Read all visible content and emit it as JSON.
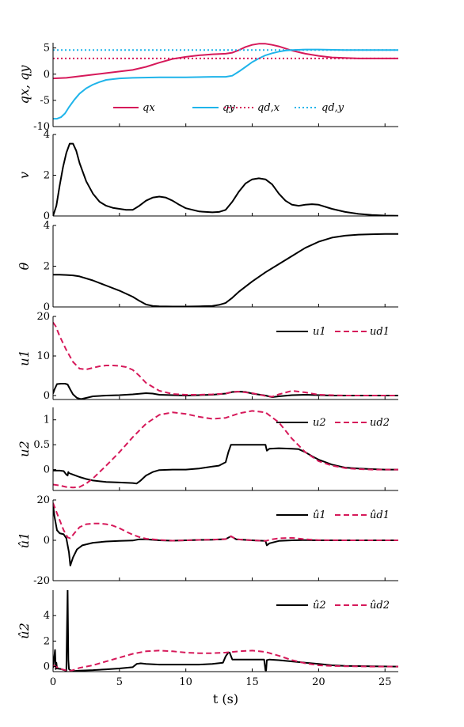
{
  "colors": {
    "magenta": "#d6195a",
    "cyan": "#1fb4ea",
    "black": "#000000"
  },
  "xaxis": {
    "label": "t (s)",
    "ticks": [
      0,
      5,
      10,
      15,
      20,
      25
    ],
    "xlim": [
      0,
      26
    ]
  },
  "chart_data": [
    {
      "type": "line",
      "ylabel": "qx, qy",
      "ylim": [
        -10,
        6
      ],
      "yticks": [
        -10,
        -5,
        0,
        5
      ],
      "legend_position": "bottom",
      "series": [
        {
          "name": "qx",
          "color": "#d6195a",
          "style": "solid",
          "x": [
            0,
            1,
            2,
            3,
            4,
            5,
            6,
            7,
            8,
            9,
            10,
            11,
            12,
            13,
            13.5,
            14,
            14.5,
            15,
            15.5,
            16,
            16.5,
            17,
            17.5,
            18,
            19,
            20,
            21,
            22,
            23,
            24,
            25,
            26
          ],
          "y": [
            -0.8,
            -0.7,
            -0.4,
            -0.1,
            0.2,
            0.5,
            0.8,
            1.4,
            2.2,
            2.9,
            3.3,
            3.6,
            3.8,
            3.9,
            4.1,
            4.6,
            5.2,
            5.6,
            5.8,
            5.8,
            5.6,
            5.3,
            4.9,
            4.5,
            3.9,
            3.5,
            3.2,
            3.1,
            3.0,
            3.0,
            3.0,
            3.0
          ]
        },
        {
          "name": "qy",
          "color": "#1fb4ea",
          "style": "solid",
          "x": [
            0,
            0.3,
            0.6,
            0.9,
            1.2,
            1.6,
            2,
            2.5,
            3,
            3.5,
            4,
            5,
            6,
            8,
            10,
            12,
            13,
            13.5,
            14,
            14.5,
            15,
            15.5,
            16,
            16.5,
            17,
            17.5,
            18,
            19,
            20,
            22,
            24,
            26
          ],
          "y": [
            -8.5,
            -8.5,
            -8.2,
            -7.5,
            -6.3,
            -4.9,
            -3.7,
            -2.7,
            -2.0,
            -1.5,
            -1.1,
            -0.8,
            -0.7,
            -0.6,
            -0.6,
            -0.5,
            -0.5,
            -0.3,
            0.5,
            1.4,
            2.3,
            3.0,
            3.6,
            4.0,
            4.3,
            4.5,
            4.6,
            4.7,
            4.7,
            4.6,
            4.6,
            4.6
          ]
        },
        {
          "name": "qd,x",
          "color": "#d6195a",
          "style": "dotted",
          "x": [
            0,
            26
          ],
          "y": [
            3.0,
            3.0
          ]
        },
        {
          "name": "qd,y",
          "color": "#1fb4ea",
          "style": "dotted",
          "x": [
            0,
            26
          ],
          "y": [
            4.6,
            4.6
          ]
        }
      ]
    },
    {
      "type": "line",
      "ylabel": "v",
      "ylim": [
        0,
        4
      ],
      "yticks": [
        0,
        2,
        4
      ],
      "series": [
        {
          "name": "v",
          "color": "#000000",
          "style": "solid",
          "x": [
            0,
            0.25,
            0.5,
            0.75,
            1,
            1.25,
            1.5,
            1.75,
            2,
            2.5,
            3,
            3.5,
            4,
            4.5,
            5,
            5.5,
            6,
            6.5,
            7,
            7.5,
            8,
            8.5,
            9,
            9.5,
            10,
            11,
            12,
            12.5,
            13,
            13.5,
            14,
            14.5,
            15,
            15.5,
            16,
            16.5,
            17,
            17.5,
            18,
            18.5,
            19,
            19.5,
            20,
            21,
            22,
            23,
            24,
            25,
            26
          ],
          "y": [
            0,
            0.5,
            1.5,
            2.4,
            3.1,
            3.55,
            3.55,
            3.2,
            2.6,
            1.7,
            1.1,
            0.7,
            0.5,
            0.4,
            0.35,
            0.3,
            0.3,
            0.5,
            0.75,
            0.9,
            0.95,
            0.9,
            0.75,
            0.55,
            0.38,
            0.22,
            0.18,
            0.2,
            0.3,
            0.7,
            1.2,
            1.6,
            1.8,
            1.85,
            1.8,
            1.55,
            1.1,
            0.75,
            0.55,
            0.5,
            0.55,
            0.58,
            0.55,
            0.35,
            0.2,
            0.1,
            0.05,
            0.02,
            0.01
          ]
        }
      ]
    },
    {
      "type": "line",
      "ylabel": "θ",
      "ylim": [
        0,
        4
      ],
      "yticks": [
        0,
        2,
        4
      ],
      "series": [
        {
          "name": "θ",
          "color": "#000000",
          "style": "solid",
          "x": [
            0,
            0.5,
            1,
            1.5,
            2,
            3,
            4,
            5,
            6,
            6.5,
            7,
            7.5,
            8,
            9,
            10,
            11,
            12,
            12.5,
            13,
            13.5,
            14,
            15,
            16,
            17,
            18,
            19,
            20,
            21,
            22,
            23,
            24,
            25,
            26
          ],
          "y": [
            1.58,
            1.58,
            1.57,
            1.55,
            1.5,
            1.3,
            1.05,
            0.8,
            0.5,
            0.3,
            0.12,
            0.05,
            0.03,
            0.02,
            0.02,
            0.03,
            0.05,
            0.1,
            0.2,
            0.45,
            0.75,
            1.25,
            1.7,
            2.1,
            2.5,
            2.9,
            3.2,
            3.4,
            3.5,
            3.55,
            3.57,
            3.58,
            3.58
          ]
        }
      ]
    },
    {
      "type": "line",
      "ylabel": "u1",
      "ylim": [
        -1,
        20
      ],
      "yticks": [
        0,
        10,
        20
      ],
      "legend_position": "top-right",
      "series": [
        {
          "name": "u1",
          "color": "#000000",
          "style": "solid",
          "x": [
            0,
            0.1,
            0.3,
            0.6,
            0.9,
            1.1,
            1.3,
            1.5,
            1.8,
            2.1,
            2.5,
            3,
            4,
            5,
            6,
            7,
            7.5,
            8,
            9,
            10,
            11,
            12,
            13,
            13.5,
            14,
            14.5,
            15,
            16,
            16.5,
            17,
            18,
            19,
            20,
            21,
            22,
            23,
            24,
            25,
            26
          ],
          "y": [
            0.5,
            1.5,
            2.9,
            3.0,
            3.0,
            2.8,
            1.5,
            0.3,
            -0.6,
            -0.9,
            -0.6,
            -0.2,
            0.0,
            0.1,
            0.3,
            0.6,
            0.5,
            0.2,
            0.1,
            0.0,
            0.1,
            0.2,
            0.5,
            0.9,
            1.0,
            0.9,
            0.5,
            0.0,
            -0.4,
            -0.2,
            0.1,
            0.2,
            0.1,
            0.0,
            0.0,
            0.0,
            0.0,
            0.0,
            0.0
          ]
        },
        {
          "name": "ud1",
          "color": "#d6195a",
          "style": "dashed",
          "x": [
            0,
            0.2,
            0.5,
            1,
            1.5,
            2,
            2.5,
            3,
            3.5,
            4,
            4.5,
            5,
            5.5,
            6,
            6.5,
            7,
            8,
            9,
            10,
            11,
            12,
            13,
            13.5,
            14,
            15,
            16,
            16.5,
            17,
            18,
            19,
            20,
            21,
            22,
            24,
            26
          ],
          "y": [
            18.5,
            17.5,
            15,
            11.5,
            8.5,
            6.8,
            6.6,
            7.0,
            7.4,
            7.6,
            7.6,
            7.5,
            7.2,
            6.5,
            5.0,
            3.2,
            1.2,
            0.4,
            0.2,
            0.2,
            0.3,
            0.5,
            0.9,
            1.0,
            0.6,
            -0.1,
            -0.3,
            0.3,
            1.2,
            0.8,
            0.2,
            0.1,
            0.0,
            0.0,
            0.0
          ]
        }
      ]
    },
    {
      "type": "line",
      "ylabel": "u2",
      "ylim": [
        -0.42,
        1.25
      ],
      "yticks": [
        0,
        0.5,
        1
      ],
      "legend_position": "top-right",
      "series": [
        {
          "name": "u2",
          "color": "#000000",
          "style": "solid",
          "x": [
            0,
            0.5,
            0.8,
            1.0,
            1.1,
            1.15,
            1.2,
            1.5,
            2,
            2.5,
            3,
            4,
            5,
            6,
            6.3,
            6.6,
            7,
            7.5,
            8,
            9,
            10,
            11,
            12,
            12.5,
            13,
            13.2,
            13.4,
            14,
            15,
            16,
            16.1,
            16.3,
            17,
            18,
            18.5,
            19,
            19.5,
            20,
            21,
            22,
            23,
            24,
            25,
            26
          ],
          "y": [
            -0.02,
            -0.02,
            -0.03,
            -0.1,
            -0.12,
            -0.05,
            -0.07,
            -0.1,
            -0.15,
            -0.19,
            -0.22,
            -0.25,
            -0.26,
            -0.27,
            -0.28,
            -0.22,
            -0.12,
            -0.05,
            -0.01,
            0.0,
            0.0,
            0.02,
            0.06,
            0.08,
            0.15,
            0.35,
            0.5,
            0.5,
            0.5,
            0.5,
            0.38,
            0.42,
            0.43,
            0.42,
            0.41,
            0.35,
            0.27,
            0.2,
            0.1,
            0.04,
            0.02,
            0.01,
            0.0,
            0.0
          ]
        },
        {
          "name": "ud2",
          "color": "#d6195a",
          "style": "dashed",
          "x": [
            0,
            0.5,
            1,
            1.5,
            2,
            2.5,
            3,
            3.5,
            4,
            5,
            6,
            7,
            8,
            9,
            10,
            11,
            12,
            13,
            14,
            15,
            16,
            17,
            18,
            19,
            20,
            21,
            22,
            23,
            24,
            25,
            26
          ],
          "y": [
            -0.3,
            -0.32,
            -0.35,
            -0.36,
            -0.35,
            -0.28,
            -0.18,
            -0.05,
            0.08,
            0.35,
            0.65,
            0.92,
            1.1,
            1.15,
            1.12,
            1.06,
            1.02,
            1.04,
            1.13,
            1.18,
            1.15,
            0.95,
            0.62,
            0.35,
            0.17,
            0.08,
            0.03,
            0.01,
            0.0,
            0.0,
            0.0
          ]
        }
      ]
    },
    {
      "type": "line",
      "ylabel": "û1",
      "ylim": [
        -20,
        20
      ],
      "yticks": [
        -20,
        0,
        20
      ],
      "legend_position": "top-right",
      "series": [
        {
          "name": "û1",
          "color": "#000000",
          "style": "solid",
          "x": [
            0,
            0.1,
            0.3,
            0.5,
            0.8,
            1.0,
            1.2,
            1.3,
            1.5,
            1.8,
            2.2,
            3,
            4,
            5,
            6,
            6.5,
            7,
            8,
            9,
            10,
            11,
            12,
            13,
            13.4,
            13.8,
            15,
            16,
            16.1,
            16.3,
            17,
            18,
            19,
            20,
            22,
            24,
            26
          ],
          "y": [
            17.5,
            12,
            5,
            3.5,
            3.0,
            1.0,
            -6,
            -12.5,
            -8.5,
            -4.5,
            -2.5,
            -1.2,
            -0.6,
            -0.3,
            -0.1,
            0.5,
            0.5,
            0.0,
            -0.2,
            0.0,
            0.2,
            0.3,
            0.6,
            2.0,
            0.5,
            0.0,
            -0.3,
            -2.5,
            -1.5,
            -0.3,
            0.0,
            0.1,
            0.0,
            0.0,
            0.0,
            0.0
          ]
        },
        {
          "name": "ûd1",
          "color": "#d6195a",
          "style": "dashed",
          "x": [
            0,
            0.2,
            0.5,
            0.8,
            1.1,
            1.3,
            1.6,
            2,
            2.5,
            3,
            3.5,
            4,
            4.5,
            5,
            5.5,
            6,
            6.5,
            7,
            8,
            9,
            10,
            11,
            12,
            13,
            13.4,
            13.8,
            15,
            16,
            16.5,
            17,
            18,
            19,
            20,
            22,
            26
          ],
          "y": [
            18.5,
            15,
            10,
            5,
            1.5,
            1.0,
            3.5,
            6.5,
            8.0,
            8.3,
            8.3,
            8.0,
            7.3,
            6.0,
            4.3,
            2.8,
            1.6,
            0.8,
            0.2,
            -0.2,
            0.0,
            0.2,
            0.3,
            0.6,
            2.0,
            0.5,
            0.0,
            -0.3,
            0.5,
            1.0,
            1.2,
            0.5,
            0.1,
            0.0,
            0.0
          ]
        }
      ]
    },
    {
      "type": "line",
      "ylabel": "û2",
      "ylim": [
        -0.4,
        6
      ],
      "yticks": [
        0,
        2,
        4
      ],
      "legend_position": "top-right",
      "series": [
        {
          "name": "û2",
          "color": "#000000",
          "style": "solid",
          "x": [
            0,
            0.15,
            0.2,
            0.25,
            0.3,
            0.6,
            0.9,
            1.0,
            1.05,
            1.1,
            1.15,
            1.2,
            1.3,
            1.6,
            2,
            3,
            4,
            5,
            6,
            6.3,
            6.6,
            7,
            8,
            9,
            10,
            11,
            12,
            12.8,
            13,
            13.2,
            13.3,
            13.5,
            14,
            15,
            15.9,
            16.0,
            16.05,
            16.1,
            16.3,
            17,
            18,
            19,
            20,
            21,
            22,
            24,
            26
          ],
          "y": [
            -0.1,
            1.3,
            -0.2,
            0.3,
            -0.15,
            -0.2,
            -0.3,
            -0.35,
            3.0,
            6.0,
            0.5,
            -0.2,
            -0.3,
            -0.35,
            -0.32,
            -0.28,
            -0.22,
            -0.15,
            -0.05,
            0.2,
            0.25,
            0.2,
            0.15,
            0.15,
            0.15,
            0.15,
            0.2,
            0.3,
            0.8,
            1.1,
            1.1,
            0.55,
            0.55,
            0.55,
            0.55,
            -0.3,
            -0.3,
            0.5,
            0.55,
            0.5,
            0.4,
            0.3,
            0.2,
            0.1,
            0.05,
            0.02,
            0.0
          ]
        },
        {
          "name": "ûd2",
          "color": "#d6195a",
          "style": "dashed",
          "x": [
            0,
            0.3,
            0.6,
            1,
            1.3,
            1.6,
            2,
            2.5,
            3,
            4,
            5,
            6,
            7,
            8,
            9,
            10,
            11,
            12,
            13,
            14,
            15,
            16,
            17,
            18,
            19,
            20,
            21,
            22,
            24,
            26
          ],
          "y": [
            0.1,
            -0.05,
            -0.2,
            -0.3,
            -0.35,
            -0.25,
            -0.1,
            0.0,
            0.1,
            0.4,
            0.7,
            1.0,
            1.2,
            1.25,
            1.2,
            1.1,
            1.05,
            1.05,
            1.1,
            1.2,
            1.25,
            1.15,
            0.85,
            0.5,
            0.25,
            0.1,
            0.05,
            0.02,
            0.0,
            0.0
          ]
        }
      ]
    }
  ]
}
